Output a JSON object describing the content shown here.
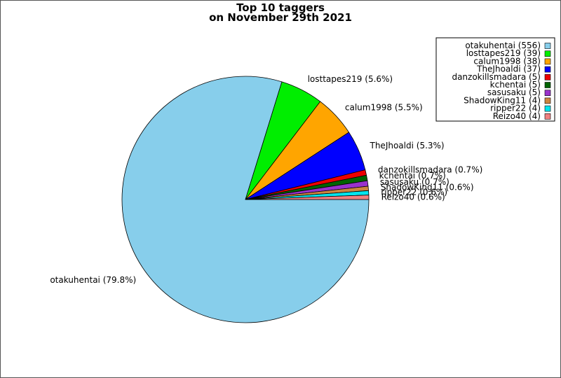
{
  "chart_data": {
    "type": "pie",
    "title_lines": [
      "Top 10 taggers",
      "on November 29th 2021"
    ],
    "slices": [
      {
        "name": "otakuhentai",
        "count": 556,
        "percent": 79.8,
        "legend_label": "otakuhentai (556)",
        "pie_label": "otakuhentai (79.8%)",
        "color": "#87ceeb"
      },
      {
        "name": "losttapes219",
        "count": 39,
        "percent": 5.6,
        "legend_label": "losttapes219 (39)",
        "pie_label": "losttapes219 (5.6%)",
        "color": "#00ee00"
      },
      {
        "name": "calum1998",
        "count": 38,
        "percent": 5.5,
        "legend_label": "calum1998 (38)",
        "pie_label": "calum1998 (5.5%)",
        "color": "#ffa500"
      },
      {
        "name": "TheJhoaldi",
        "count": 37,
        "percent": 5.3,
        "legend_label": "TheJhoaldi (37)",
        "pie_label": "TheJhoaldi (5.3%)",
        "color": "#0000ff"
      },
      {
        "name": "danzokillsmadara",
        "count": 5,
        "percent": 0.7,
        "legend_label": "danzokillsmadara (5)",
        "pie_label": "danzokillsmadara (0.7%)",
        "color": "#ee0000"
      },
      {
        "name": "kchentai",
        "count": 5,
        "percent": 0.7,
        "legend_label": "kchentai (5)",
        "pie_label": "kchentai (0.7%)",
        "color": "#006400"
      },
      {
        "name": "sasusaku",
        "count": 5,
        "percent": 0.7,
        "legend_label": "sasusaku (5)",
        "pie_label": "sasusaku (0.7%)",
        "color": "#9932cc"
      },
      {
        "name": "ShadowKing11",
        "count": 4,
        "percent": 0.6,
        "legend_label": "ShadowKing11 (4)",
        "pie_label": "ShadowKing11 (0.6%)",
        "color": "#cd853f"
      },
      {
        "name": "ripper22",
        "count": 4,
        "percent": 0.6,
        "legend_label": "ripper22 (4)",
        "pie_label": "ripper22 (0.6%)",
        "color": "#00e5ee"
      },
      {
        "name": "Reizo40",
        "count": 4,
        "percent": 0.6,
        "legend_label": "Reizo40 (4)",
        "pie_label": "Reizo40 (0.6%)",
        "color": "#f08080"
      }
    ],
    "legend_position": "top-right"
  }
}
